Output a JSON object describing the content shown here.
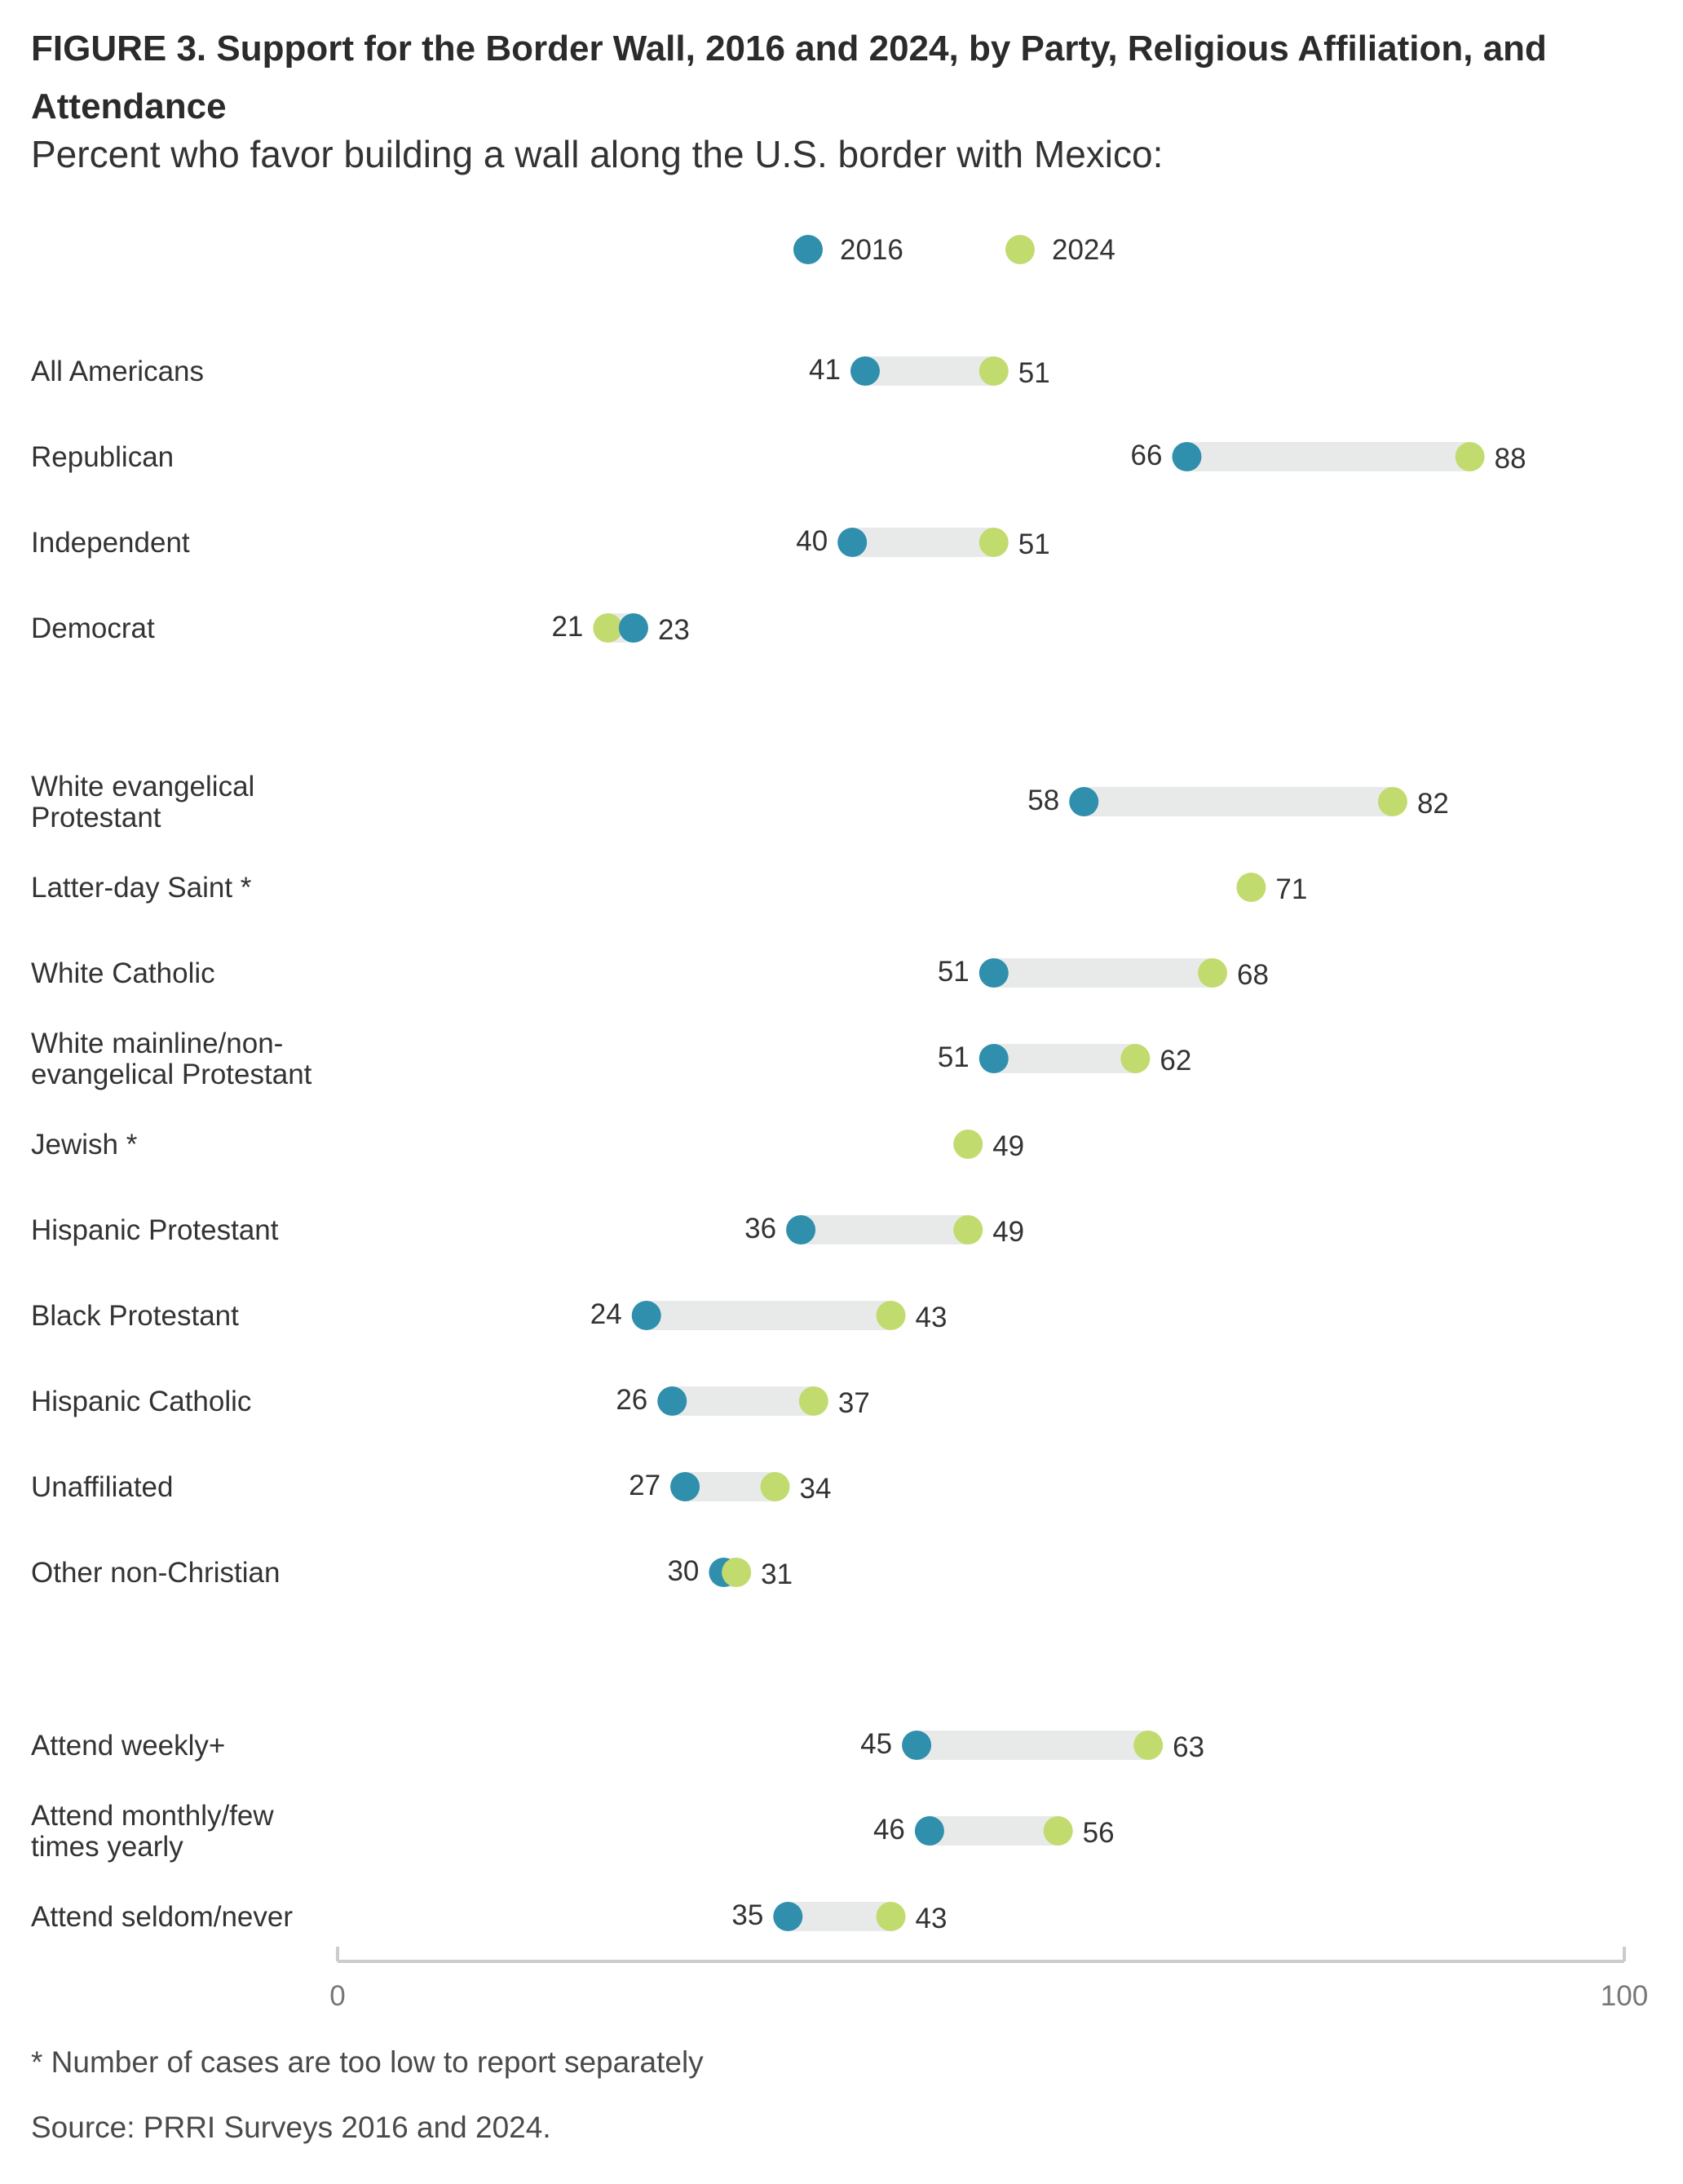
{
  "title": "FIGURE 3. Support for the Border Wall, 2016 and 2024, by Party, Religious Affiliation, and Attendance",
  "subtitle": "Percent who favor building a wall along the U.S. border with Mexico:",
  "footnote": "* Number of cases are too low to report separately",
  "source": "Source: PRRI Surveys 2016 and 2024.",
  "colors": {
    "series_2016": "#2f8fad",
    "series_2024": "#c2db6e",
    "bar": "#e8eaea",
    "axis": "#cccccc",
    "text": "#333333",
    "tick": "#777777"
  },
  "chart_data": {
    "type": "dumbbell",
    "xlim": [
      0,
      100
    ],
    "ticks": [
      "0",
      "100"
    ],
    "legend_position": "top-center",
    "series": [
      {
        "name": "2016",
        "values": [
          41,
          66,
          40,
          23,
          58,
          null,
          51,
          51,
          null,
          36,
          24,
          26,
          27,
          30,
          45,
          46,
          35
        ]
      },
      {
        "name": "2024",
        "values": [
          51,
          88,
          51,
          21,
          82,
          71,
          68,
          62,
          49,
          49,
          43,
          37,
          34,
          31,
          63,
          56,
          43
        ]
      }
    ],
    "categories": [
      "All Americans",
      "Republican",
      "Independent",
      "Democrat",
      "White evangelical Protestant",
      "Latter-day Saint *",
      "White Catholic",
      "White mainline/non-evangelical Protestant",
      "Jewish *",
      "Hispanic Protestant",
      "Black Protestant",
      "Hispanic Catholic",
      "Unaffiliated",
      "Other non-Christian",
      "Attend weekly+",
      "Attend monthly/few times yearly",
      "Attend seldom/never"
    ],
    "category_lines": [
      [
        "All Americans"
      ],
      [
        "Republican"
      ],
      [
        "Independent"
      ],
      [
        "Democrat"
      ],
      [
        "White evangelical",
        "Protestant"
      ],
      [
        "Latter-day Saint *"
      ],
      [
        "White Catholic"
      ],
      [
        "White mainline/non-",
        "evangelical Protestant"
      ],
      [
        "Jewish *"
      ],
      [
        "Hispanic Protestant"
      ],
      [
        "Black Protestant"
      ],
      [
        "Hispanic Catholic"
      ],
      [
        "Unaffiliated"
      ],
      [
        "Other non-Christian"
      ],
      [
        "Attend weekly+"
      ],
      [
        "Attend monthly/few",
        "times yearly"
      ],
      [
        "Attend seldom/never"
      ]
    ]
  }
}
